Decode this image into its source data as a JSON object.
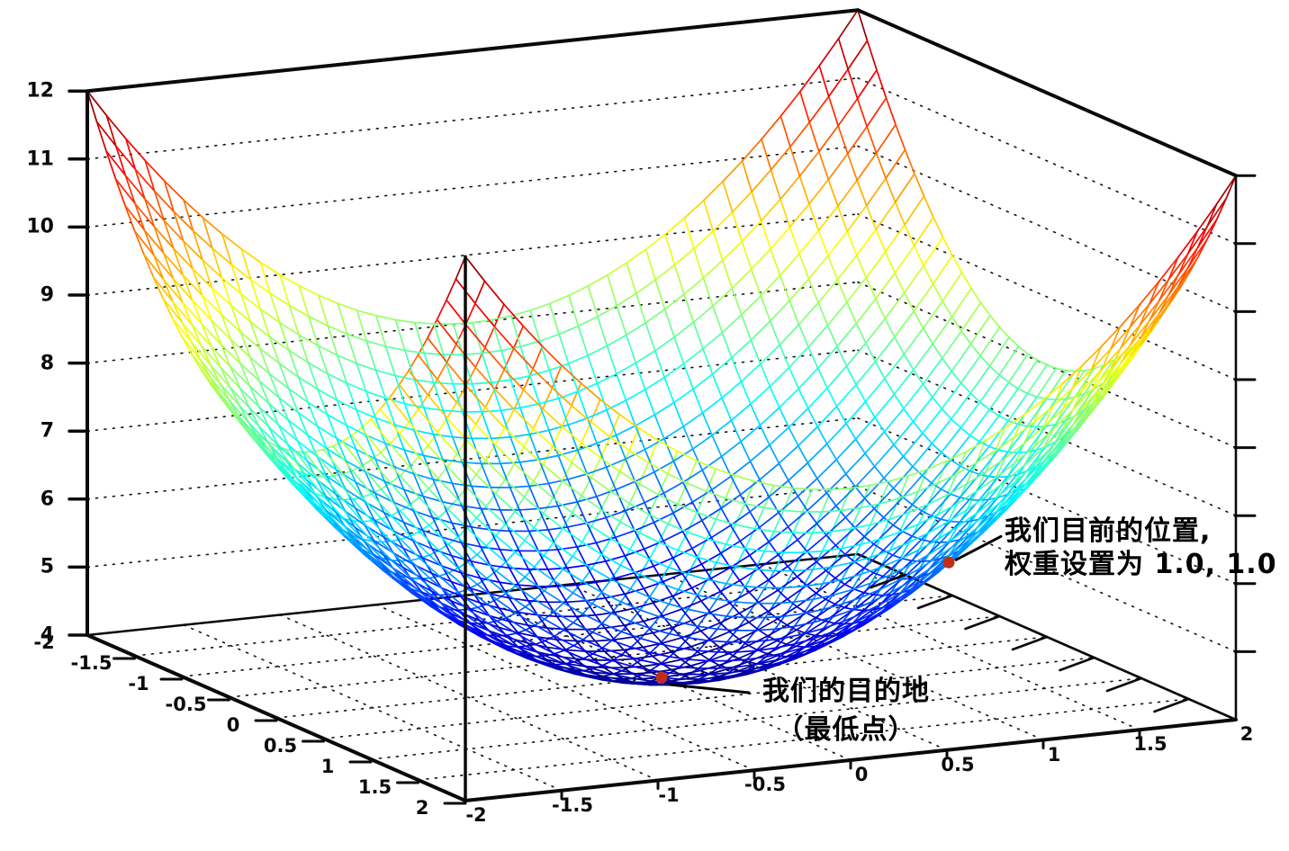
{
  "chart_data": {
    "type": "surface3d-wireframe",
    "z_function": "x*x + y*y + 4",
    "x_range": [
      -2,
      2
    ],
    "y_range": [
      -2,
      2
    ],
    "z_range": [
      4,
      12
    ],
    "mesh_divisions": 40,
    "colormap": "jet",
    "grid_dotted": true,
    "background": "#ffffff",
    "axis_color": "#0a0a0a",
    "marker_color": "#c22d1a",
    "x_axis": {
      "ticks": [
        -2,
        -1.5,
        -1,
        -0.5,
        0,
        0.5,
        1,
        1.5,
        2
      ],
      "labels": [
        "-2",
        "-1.5",
        "-1",
        "-0.5",
        "0",
        "0.5",
        "1",
        "1.5",
        "2"
      ]
    },
    "y_axis": {
      "ticks": [
        -2,
        -1.5,
        -1,
        -0.5,
        0,
        0.5,
        1,
        1.5,
        2
      ],
      "labels": [
        "-2",
        "-1.5",
        "-1",
        "-0.5",
        "0",
        "0.5",
        "1",
        "1.5",
        "2"
      ]
    },
    "z_axis": {
      "ticks": [
        4,
        5,
        6,
        7,
        8,
        9,
        10,
        11,
        12
      ],
      "labels": [
        "4",
        "5",
        "6",
        "7",
        "8",
        "9",
        "10",
        "11",
        "12"
      ]
    },
    "annotations": [
      {
        "id": "current-position",
        "lines": [
          "我们目前的位置,",
          "权重设置为 1.0, 1.0"
        ],
        "point": [
          1,
          1,
          6
        ]
      },
      {
        "id": "destination",
        "lines": [
          "我们的目的地",
          "（最低点）"
        ],
        "point": [
          0,
          0,
          4
        ]
      }
    ]
  }
}
